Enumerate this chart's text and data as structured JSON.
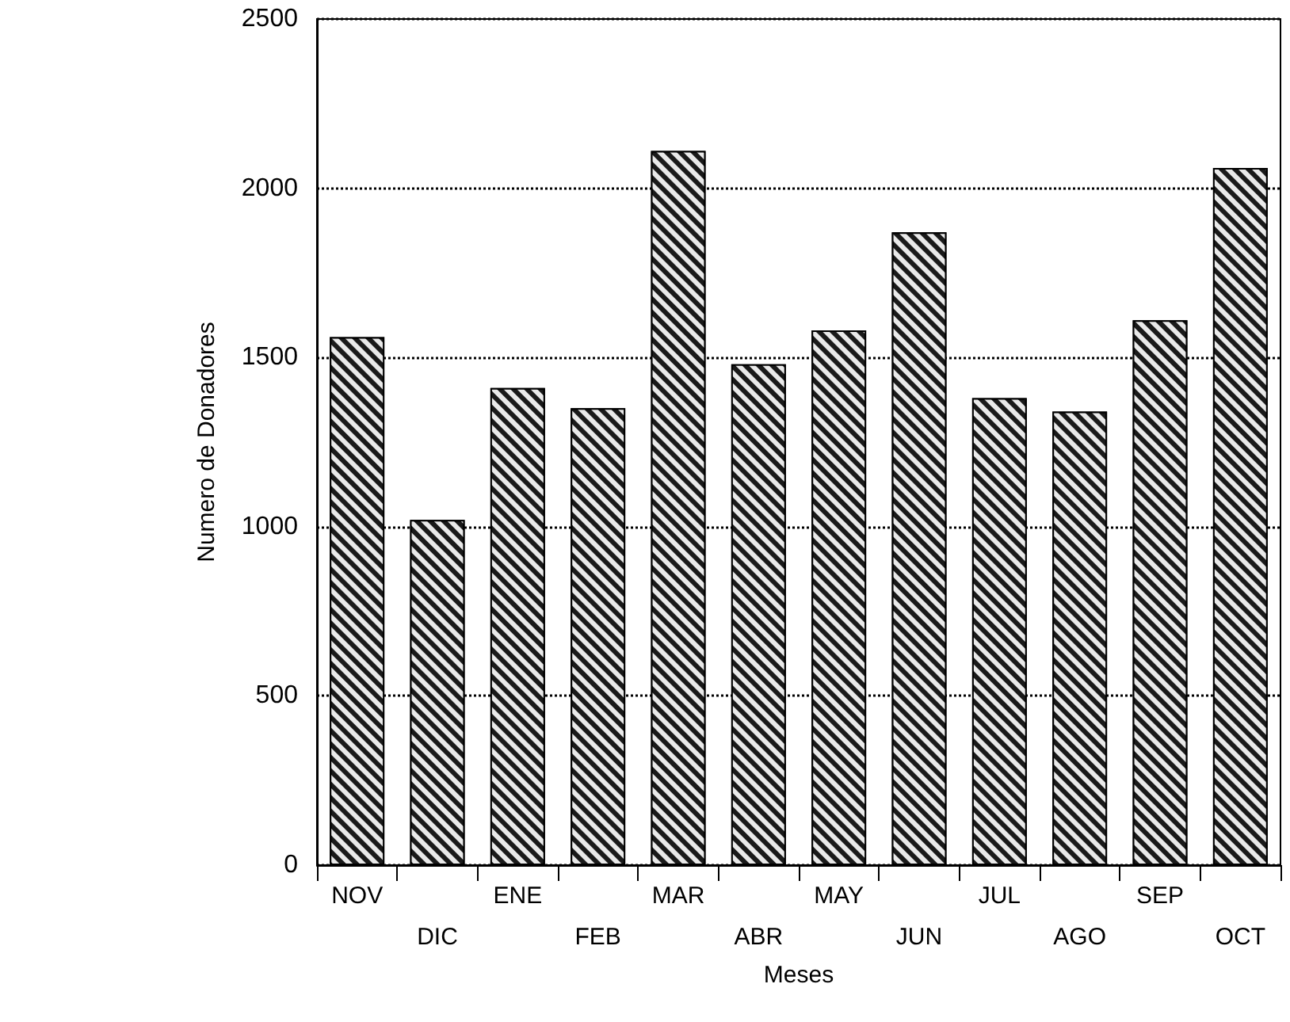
{
  "chart_data": {
    "type": "bar",
    "xlabel": "Meses",
    "ylabel": "Numero de Donadores",
    "categories": [
      "NOV",
      "DIC",
      "ENE",
      "FEB",
      "MAR",
      "ABR",
      "MAY",
      "JUN",
      "JUL",
      "AGO",
      "SEP",
      "OCT"
    ],
    "values": [
      1560,
      1020,
      1410,
      1350,
      2110,
      1480,
      1580,
      1870,
      1380,
      1340,
      1610,
      2060
    ],
    "color": "#1a1a1a",
    "ylim": [
      0,
      2500
    ],
    "yticks": [
      0,
      500,
      1000,
      1500,
      2000,
      2500
    ],
    "grid": "y"
  }
}
